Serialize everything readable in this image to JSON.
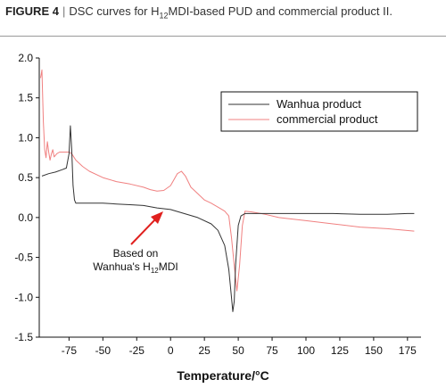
{
  "caption": {
    "figure_label": "FIGURE 4",
    "separator": "|",
    "text_before_sub": "DSC curves for H",
    "subscript": "12",
    "text_after_sub": "MDI-based PUD and commercial product II."
  },
  "colors": {
    "wanhua": "#333333",
    "commercial": "#f08080",
    "arrow": "#e0201e",
    "axis": "#111111"
  },
  "chart_data": {
    "type": "line",
    "title": "",
    "xlabel": "Temperature/°C",
    "ylabel": "",
    "xlim": [
      -97,
      185
    ],
    "ylim": [
      -1.5,
      2.0
    ],
    "xticks": [
      -75,
      -50,
      -25,
      0,
      25,
      50,
      75,
      100,
      125,
      150,
      175
    ],
    "yticks": [
      2.0,
      1.5,
      1.0,
      0.5,
      0.0,
      -0.5,
      -1.0,
      -1.5
    ],
    "ytick_labels": [
      "2.0",
      "1.5",
      "1.0",
      "0.5",
      "0.0",
      "-0.5",
      "-1.0",
      "-1.5"
    ],
    "grid": false,
    "legend_position": "top-right",
    "series": [
      {
        "name": "Wanhua product",
        "color": "#333333",
        "points": [
          [
            -95,
            0.52
          ],
          [
            -90,
            0.55
          ],
          [
            -85,
            0.57
          ],
          [
            -80,
            0.6
          ],
          [
            -77,
            0.62
          ],
          [
            -75,
            0.8
          ],
          [
            -74,
            1.15
          ],
          [
            -73,
            0.85
          ],
          [
            -72,
            0.4
          ],
          [
            -71,
            0.22
          ],
          [
            -70,
            0.18
          ],
          [
            -60,
            0.18
          ],
          [
            -50,
            0.18
          ],
          [
            -40,
            0.17
          ],
          [
            -30,
            0.16
          ],
          [
            -20,
            0.15
          ],
          [
            -10,
            0.12
          ],
          [
            0,
            0.1
          ],
          [
            10,
            0.05
          ],
          [
            20,
            0.0
          ],
          [
            30,
            -0.08
          ],
          [
            35,
            -0.16
          ],
          [
            40,
            -0.35
          ],
          [
            43,
            -0.65
          ],
          [
            45,
            -1.0
          ],
          [
            46,
            -1.18
          ],
          [
            47,
            -1.05
          ],
          [
            48,
            -0.6
          ],
          [
            50,
            -0.1
          ],
          [
            52,
            0.02
          ],
          [
            55,
            0.05
          ],
          [
            60,
            0.05
          ],
          [
            80,
            0.05
          ],
          [
            100,
            0.05
          ],
          [
            120,
            0.05
          ],
          [
            140,
            0.04
          ],
          [
            160,
            0.04
          ],
          [
            175,
            0.05
          ],
          [
            180,
            0.05
          ]
        ]
      },
      {
        "name": "commercial product",
        "color": "#f08080",
        "points": [
          [
            -96,
            1.75
          ],
          [
            -95,
            1.85
          ],
          [
            -94,
            1.2
          ],
          [
            -93,
            0.85
          ],
          [
            -92,
            0.75
          ],
          [
            -91,
            0.95
          ],
          [
            -90,
            0.82
          ],
          [
            -89,
            0.72
          ],
          [
            -88,
            0.8
          ],
          [
            -87,
            0.85
          ],
          [
            -86,
            0.76
          ],
          [
            -84,
            0.8
          ],
          [
            -82,
            0.82
          ],
          [
            -78,
            0.82
          ],
          [
            -75,
            0.82
          ],
          [
            -73,
            0.8
          ],
          [
            -70,
            0.72
          ],
          [
            -65,
            0.64
          ],
          [
            -60,
            0.58
          ],
          [
            -50,
            0.5
          ],
          [
            -40,
            0.45
          ],
          [
            -30,
            0.42
          ],
          [
            -20,
            0.38
          ],
          [
            -15,
            0.35
          ],
          [
            -10,
            0.33
          ],
          [
            -5,
            0.34
          ],
          [
            0,
            0.4
          ],
          [
            5,
            0.55
          ],
          [
            8,
            0.58
          ],
          [
            11,
            0.52
          ],
          [
            15,
            0.38
          ],
          [
            20,
            0.3
          ],
          [
            25,
            0.22
          ],
          [
            30,
            0.18
          ],
          [
            35,
            0.13
          ],
          [
            40,
            0.08
          ],
          [
            43,
            0.02
          ],
          [
            45,
            -0.25
          ],
          [
            47,
            -0.6
          ],
          [
            49,
            -0.92
          ],
          [
            51,
            -0.6
          ],
          [
            53,
            -0.1
          ],
          [
            55,
            0.08
          ],
          [
            60,
            0.07
          ],
          [
            70,
            0.04
          ],
          [
            80,
            0.0
          ],
          [
            100,
            -0.04
          ],
          [
            120,
            -0.08
          ],
          [
            140,
            -0.12
          ],
          [
            160,
            -0.14
          ],
          [
            180,
            -0.17
          ]
        ]
      }
    ],
    "annotation": {
      "line1": "Based on",
      "line2_prefix": "Wanhua's H",
      "line2_sub": "12",
      "line2_suffix": "MDI"
    }
  }
}
